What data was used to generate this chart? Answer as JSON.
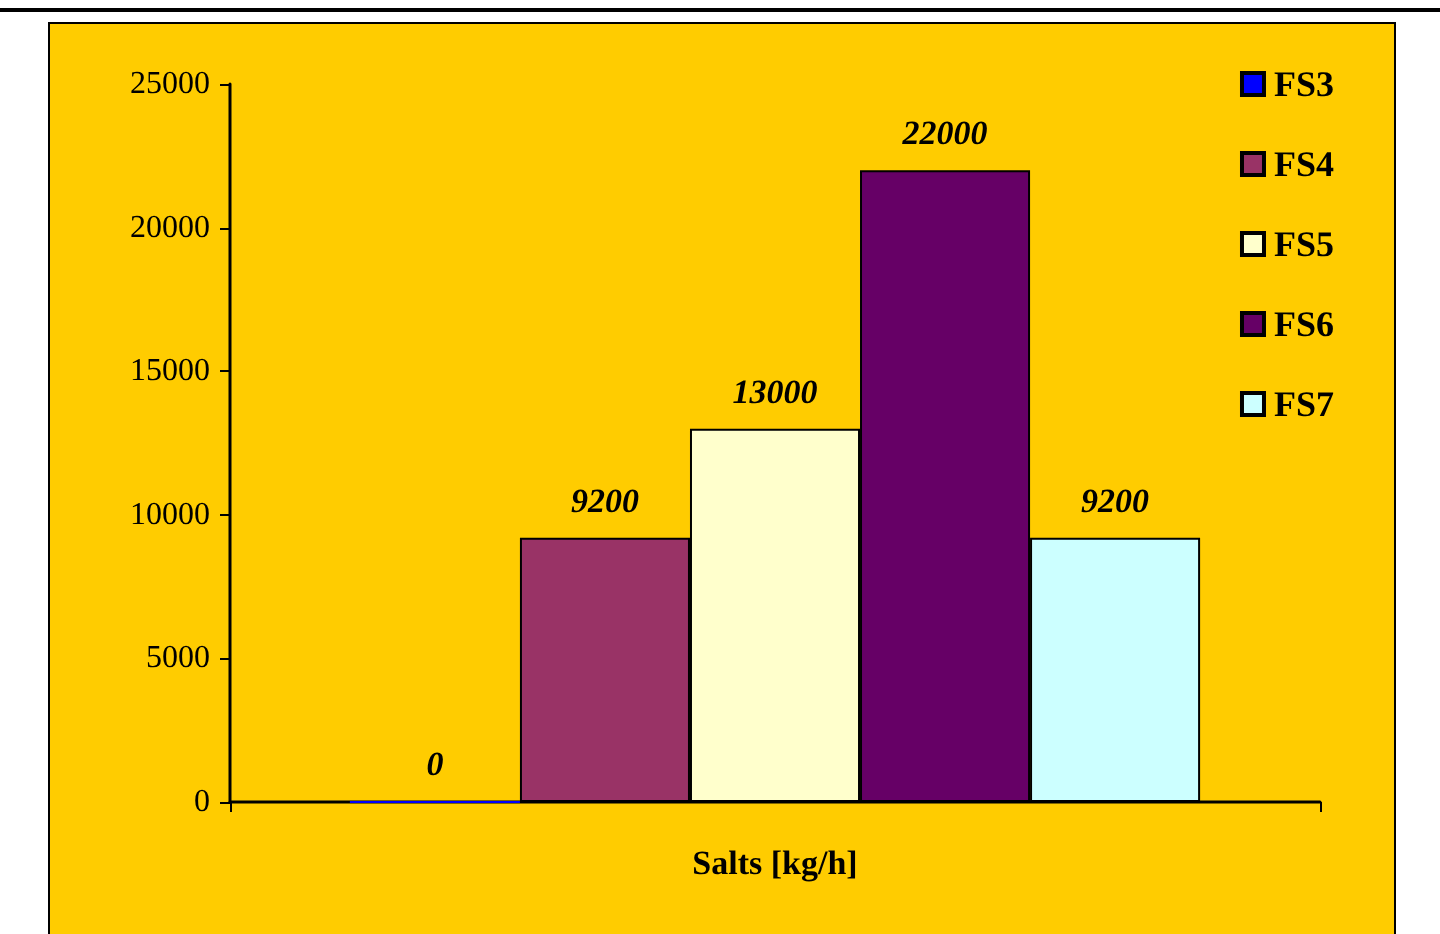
{
  "chart_data": {
    "type": "bar",
    "xlabel": null,
    "categories": [
      "Salts [kg/h]"
    ],
    "series": [
      {
        "name": "FS3",
        "color": "#0000ff",
        "values": [
          0
        ]
      },
      {
        "name": "FS4",
        "color": "#993366",
        "values": [
          9200
        ]
      },
      {
        "name": "FS5",
        "color": "#ffffcc",
        "values": [
          13000
        ]
      },
      {
        "name": "FS6",
        "color": "#660066",
        "values": [
          22000
        ]
      },
      {
        "name": "FS7",
        "color": "#ccffff",
        "values": [
          9200
        ]
      }
    ],
    "ylim": [
      0,
      25000
    ],
    "yticks": [
      0,
      5000,
      10000,
      15000,
      20000,
      25000
    ],
    "grid": false,
    "legend": "right",
    "data_labels": true
  }
}
